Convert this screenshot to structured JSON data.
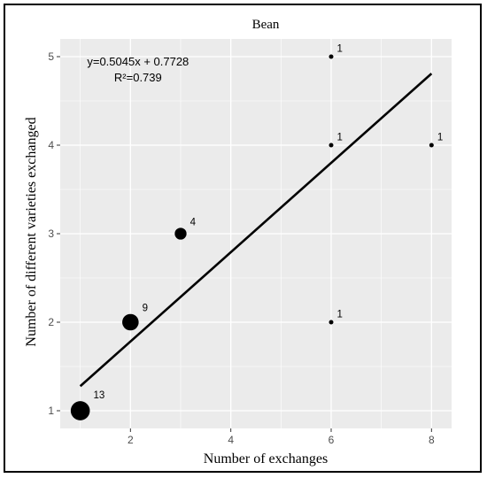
{
  "chart_data": {
    "type": "scatter",
    "title": "Bean",
    "xlabel": "Number of exchanges",
    "ylabel": "Number of different varieties exchanged",
    "xlim": [
      0.6,
      8.4
    ],
    "ylim": [
      0.8,
      5.2
    ],
    "x_ticks": [
      2,
      4,
      6,
      8
    ],
    "y_ticks": [
      1,
      2,
      3,
      4,
      5
    ],
    "grid": true,
    "points": [
      {
        "x": 1,
        "y": 1,
        "count": "13",
        "size": 13
      },
      {
        "x": 2,
        "y": 2,
        "count": "9",
        "size": 9
      },
      {
        "x": 3,
        "y": 3,
        "count": "4",
        "size": 4
      },
      {
        "x": 6,
        "y": 5,
        "count": "1",
        "size": 1
      },
      {
        "x": 6,
        "y": 4,
        "count": "1",
        "size": 1
      },
      {
        "x": 8,
        "y": 4,
        "count": "1",
        "size": 1
      },
      {
        "x": 6,
        "y": 2,
        "count": "1",
        "size": 1
      }
    ],
    "regression": {
      "slope": 0.5045,
      "intercept": 0.7728,
      "x_range": [
        1,
        8
      ],
      "equation": "y=0.5045x + 0.7728",
      "r2_label": "R²=0.739"
    },
    "colors": {
      "panel": "#ebebeb",
      "grid": "#ffffff",
      "points": "#000000",
      "line": "#000000"
    }
  }
}
